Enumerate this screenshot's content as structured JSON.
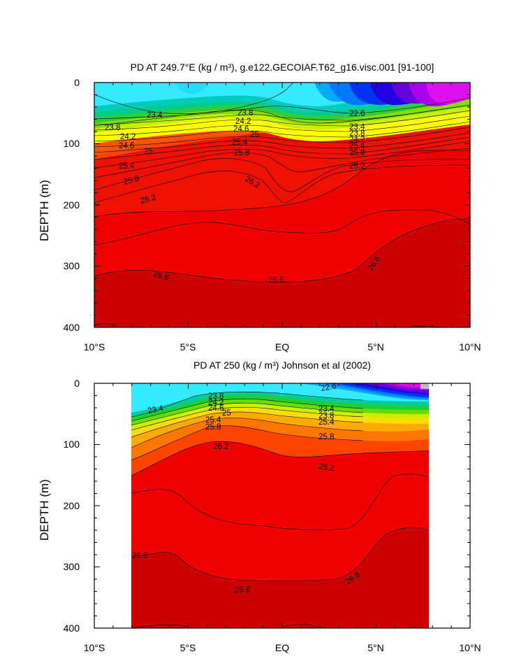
{
  "chart_data": [
    {
      "type": "contour",
      "title": "PD AT 249.7°E (kg / m³), g.e122.GECOIAF.T62_g16.visc.001 [91-100]",
      "ylabel": "DEPTH (m)",
      "xlabel": "",
      "x_ticks": [
        "10°S",
        "5°S",
        "EQ",
        "5°N",
        "10°N"
      ],
      "y_ticks": [
        "0",
        "100",
        "200",
        "300",
        "400"
      ],
      "xlim": [
        -10,
        10
      ],
      "ylim": [
        0,
        400
      ],
      "y_inverted": true,
      "contour_labels": [
        "23.4",
        "23.8",
        "23.8",
        "24.2",
        "24.2",
        "24.6",
        "24.6",
        "25",
        "25",
        "25.4",
        "25.4",
        "25.8",
        "25.8",
        "26.2",
        "26.2",
        "26.2",
        "26.6",
        "26.6",
        "26.6",
        "22.6",
        "23",
        "23.4",
        "23.8",
        "24.2",
        "24.6",
        "25",
        "25.4",
        "25.8"
      ],
      "data_coverage_lat": [
        -10,
        10
      ]
    },
    {
      "type": "contour",
      "title": "PD AT 250 (kg / m³) Johnson et al (2002)",
      "ylabel": "DEPTH (m)",
      "xlabel": "",
      "x_ticks": [
        "10°S",
        "5°S",
        "EQ",
        "5°N",
        "10°N"
      ],
      "y_ticks": [
        "0",
        "100",
        "200",
        "300",
        "400"
      ],
      "xlim": [
        -10,
        10
      ],
      "ylim": [
        0,
        400
      ],
      "y_inverted": true,
      "contour_labels": [
        "23.4",
        "23.8",
        "24.2",
        "24.6",
        "25",
        "25.4",
        "25.8",
        "26.2",
        "26.2",
        "26.6",
        "26.6",
        "26.6",
        "22.6",
        "23",
        "23.4",
        "23.8",
        "24.2",
        "24.6",
        "25",
        "25.4",
        "25.8"
      ],
      "data_coverage_lat": [
        -8,
        8.2
      ]
    }
  ],
  "colors": {
    "cyan": "#33eaff",
    "deep_red": "#cc0000",
    "red": "#ee0000",
    "magenta": "#dd11ee"
  }
}
